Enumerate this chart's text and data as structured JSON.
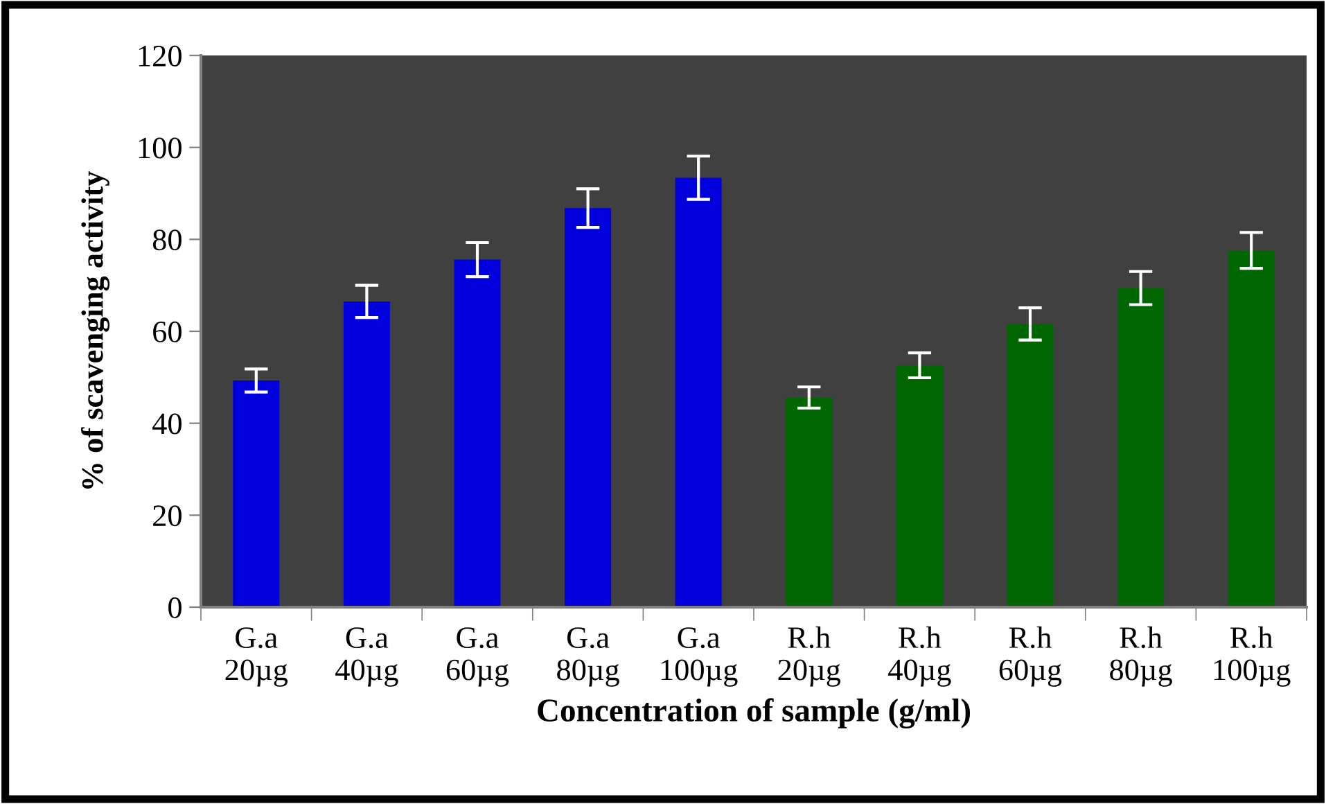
{
  "chart_data": {
    "type": "bar",
    "xlabel": "Concentration of sample (g/ml)",
    "ylabel": "% of scavenging activity",
    "categories": [
      "G.a\n20µg",
      "G.a\n40µg",
      "G.a\n60µg",
      "G.a\n80µg",
      "G.a\n100µg",
      "R.h\n20µg",
      "R.h\n40µg",
      "R.h\n60µg",
      "R.h\n80µg",
      "R.h\n100µg"
    ],
    "values": [
      49.3,
      66.5,
      75.6,
      86.8,
      93.4,
      45.6,
      52.6,
      61.6,
      69.4,
      77.6
    ],
    "errors": [
      2.5,
      3.5,
      3.7,
      4.2,
      4.7,
      2.3,
      2.7,
      3.5,
      3.6,
      3.9
    ],
    "colors": [
      "#0000dd",
      "#0000dd",
      "#0000dd",
      "#0000dd",
      "#0000dd",
      "#006600",
      "#006600",
      "#006600",
      "#006600",
      "#006600"
    ],
    "ylim": [
      0,
      120
    ],
    "yticks": [
      0,
      20,
      40,
      60,
      80,
      100,
      120
    ],
    "grid": false,
    "legend": false
  }
}
